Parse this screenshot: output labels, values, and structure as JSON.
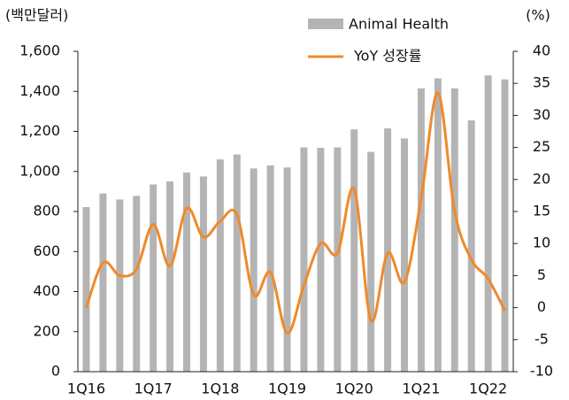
{
  "chart_data": {
    "type": "bar",
    "unit_label": "(백만달러)",
    "unit_label_y2": "(%)",
    "categories": [
      "1Q16",
      null,
      null,
      null,
      "1Q17",
      null,
      null,
      null,
      "1Q18",
      null,
      null,
      null,
      "1Q19",
      null,
      null,
      null,
      "1Q20",
      null,
      null,
      null,
      "1Q21",
      null,
      null,
      null,
      "1Q22",
      null
    ],
    "series": [
      {
        "name": "Animal Health",
        "type": "bar",
        "color": "#b4b4b4",
        "values": [
          822,
          890,
          860,
          878,
          935,
          950,
          995,
          975,
          1060,
          1085,
          1015,
          1030,
          1020,
          1120,
          1118,
          1120,
          1210,
          1098,
          1215,
          1165,
          1415,
          1465,
          1415,
          1255,
          1480,
          1460
        ]
      },
      {
        "name": "YoY 성장률",
        "type": "line",
        "axis": "y2",
        "color": "#f0892a",
        "values": [
          0,
          7,
          5,
          6,
          13,
          6.5,
          15.5,
          11,
          13.5,
          14.5,
          2,
          5.5,
          -4,
          3.5,
          10,
          8.5,
          18.5,
          -2,
          8.5,
          4,
          17,
          33.5,
          15,
          7.5,
          4.5,
          -0.5
        ]
      }
    ],
    "ylim": [
      0,
      1600
    ],
    "yticks": [
      0,
      200,
      400,
      600,
      800,
      {
        "value": 1000,
        "label": "1,000"
      },
      {
        "value": 1200,
        "label": "1,200"
      },
      {
        "value": 1400,
        "label": "1,400"
      },
      {
        "value": 1600,
        "label": "1,600"
      }
    ],
    "y2lim": [
      -10,
      40
    ],
    "y2ticks": [
      -10,
      -5,
      0,
      5,
      10,
      15,
      20,
      25,
      30,
      35,
      40
    ],
    "grid": false
  }
}
